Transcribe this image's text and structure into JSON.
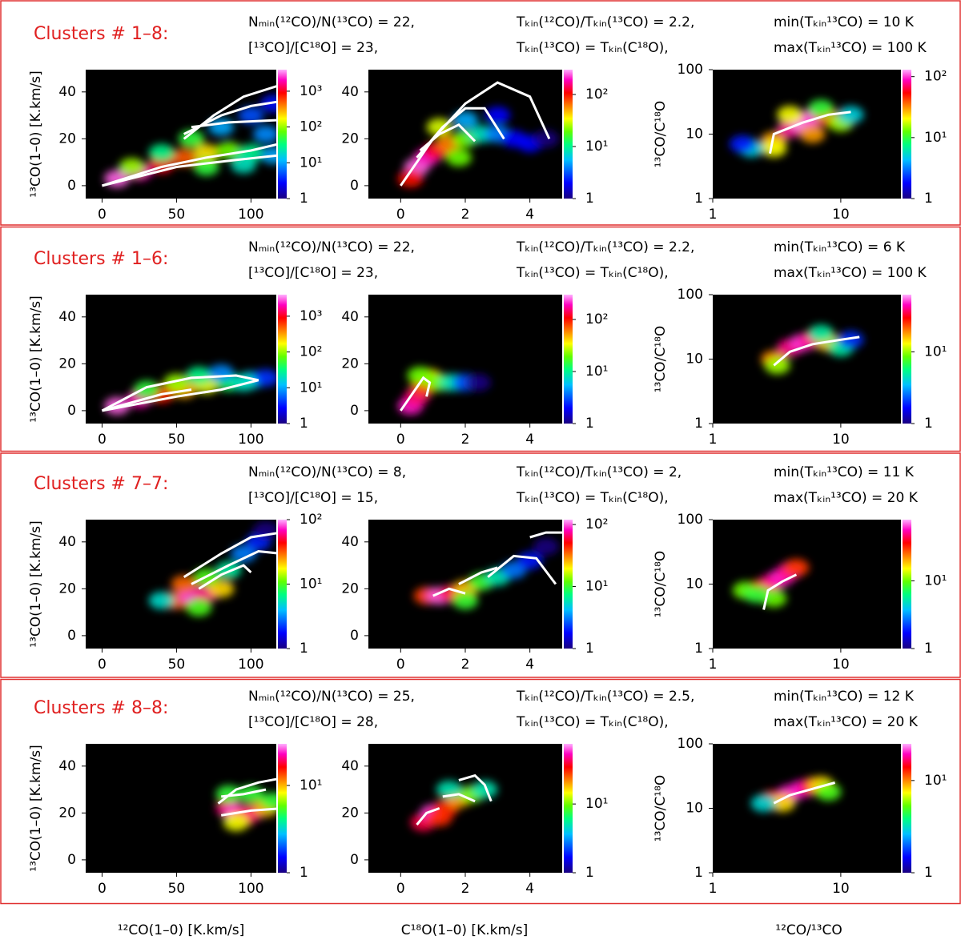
{
  "rows": [
    {
      "title": "Clusters # 1–8:",
      "params": [
        "Nₘᵢₙ(¹²CO)/N(¹³CO) = 22,",
        "Tₖᵢₙ(¹²CO)/Tₖᵢₙ(¹³CO) = 2.2,",
        "min(Tₖᵢₙ¹³CO) = 10 K",
        "[¹³CO]/[C¹⁸O] = 23,",
        "Tₖᵢₙ(¹³CO) = Tₖᵢₙ(C¹⁸O),",
        "max(Tₖᵢₙ¹³CO) = 100 K"
      ]
    },
    {
      "title": "Clusters # 1–6:",
      "params": [
        "Nₘᵢₙ(¹²CO)/N(¹³CO) = 22,",
        "Tₖᵢₙ(¹²CO)/Tₖᵢₙ(¹³CO) = 2.2,",
        "min(Tₖᵢₙ¹³CO) = 6 K",
        "[¹³CO]/[C¹⁸O] = 23,",
        "Tₖᵢₙ(¹³CO) = Tₖᵢₙ(C¹⁸O),",
        "max(Tₖᵢₙ¹³CO) = 100 K"
      ]
    },
    {
      "title": "Clusters # 7–7:",
      "params": [
        "Nₘᵢₙ(¹²CO)/N(¹³CO) = 8,",
        "Tₖᵢₙ(¹²CO)/Tₖᵢₙ(¹³CO) = 2,",
        "min(Tₖᵢₙ¹³CO) = 11 K",
        "[¹³CO]/[C¹⁸O] = 15,",
        "Tₖᵢₙ(¹³CO) = Tₖᵢₙ(C¹⁸O),",
        "max(Tₖᵢₙ¹³CO) = 20 K"
      ]
    },
    {
      "title": "Clusters # 8–8:",
      "params": [
        "Nₘᵢₙ(¹²CO)/N(¹³CO) = 25,",
        "Tₖᵢₙ(¹²CO)/Tₖᵢₙ(¹³CO) = 2.5,",
        "min(Tₖᵢₙ¹³CO) = 12 K",
        "[¹³CO]/[C¹⁸O] = 28,",
        "Tₖᵢₙ(¹³CO) = Tₖᵢₙ(C¹⁸O),",
        "max(Tₖᵢₙ¹³CO) = 20 K"
      ]
    }
  ],
  "chart_data": [
    {
      "type": "heatmap",
      "ylabel": "¹³CO(1–0) [K.km/s]",
      "xlim": [
        -11,
        117
      ],
      "ylim": [
        -5.5,
        49.5
      ],
      "xticks": [
        0,
        50,
        100
      ],
      "yticks": [
        0,
        20,
        40
      ],
      "xlog": false,
      "ylog": false,
      "clim": [
        1,
        4000
      ],
      "cticks": [
        1,
        {
          "value": 10,
          "label": "10¹"
        },
        {
          "value": 100,
          "label": "10²"
        },
        {
          "value": 1000,
          "label": "10³"
        }
      ],
      "curve_color": "#ffffff",
      "x": [
        10,
        25,
        40,
        55,
        70,
        85,
        100,
        115,
        60,
        80,
        100,
        115,
        40,
        20,
        70,
        95,
        110
      ],
      "y": [
        3,
        6,
        9,
        12,
        14,
        15,
        14,
        13,
        20,
        25,
        30,
        35,
        14,
        8,
        8,
        9,
        22
      ],
      "values": [
        3000,
        2000,
        1000,
        500,
        200,
        80,
        30,
        10,
        50,
        10,
        5,
        3,
        30,
        100,
        50,
        20,
        8
      ],
      "curves": [
        {
          "x": [
            55,
            75,
            95,
            120
          ],
          "y": [
            20,
            30,
            38,
            43
          ]
        },
        {
          "x": [
            55,
            80,
            100,
            120
          ],
          "y": [
            22,
            30,
            34,
            36
          ]
        },
        {
          "x": [
            60,
            85,
            120
          ],
          "y": [
            25,
            27,
            28
          ]
        },
        {
          "x": [
            0,
            40,
            70,
            100,
            120
          ],
          "y": [
            0,
            8,
            12,
            15,
            18
          ]
        },
        {
          "x": [
            0,
            50,
            90,
            120
          ],
          "y": [
            0,
            8,
            11,
            13
          ]
        }
      ]
    },
    {
      "type": "heatmap",
      "xlim": [
        -1,
        5
      ],
      "ylim": [
        -5.5,
        49.5
      ],
      "xticks": [
        0,
        2,
        4
      ],
      "yticks": [
        0,
        20,
        40
      ],
      "xlog": false,
      "ylog": false,
      "clim": [
        1,
        300
      ],
      "cticks": [
        1,
        {
          "value": 10,
          "label": "10¹"
        },
        {
          "value": 100,
          "label": "10²"
        }
      ],
      "curve_color": "#ffffff",
      "x": [
        0.5,
        0.8,
        1.1,
        1.5,
        2.0,
        2.5,
        3.0,
        3.5,
        4.0,
        4.5,
        1.2,
        2.0,
        0.3,
        3.0,
        1.8
      ],
      "y": [
        8,
        12,
        15,
        18,
        20,
        22,
        22,
        20,
        18,
        20,
        25,
        28,
        3,
        30,
        12
      ],
      "values": [
        250,
        200,
        120,
        60,
        20,
        8,
        4,
        2,
        2,
        1,
        30,
        5,
        100,
        2,
        20
      ],
      "curves": [
        {
          "x": [
            0,
            1,
            2,
            3,
            4,
            4.6
          ],
          "y": [
            0,
            20,
            35,
            44,
            38,
            20
          ]
        },
        {
          "x": [
            0.5,
            1.3,
            2,
            2.6,
            3.2
          ],
          "y": [
            12,
            25,
            33,
            33,
            20
          ]
        },
        {
          "x": [
            0.6,
            1.2,
            1.8,
            2.3
          ],
          "y": [
            15,
            22,
            26,
            19
          ]
        }
      ]
    },
    {
      "type": "heatmap",
      "ylabel": "¹³CO/C¹⁸O",
      "xlim": [
        1,
        29.5
      ],
      "ylim": [
        1,
        100
      ],
      "xticks": [
        1,
        10
      ],
      "yticks": [
        1,
        10,
        100
      ],
      "xlog": true,
      "ylog": true,
      "clim": [
        1,
        130
      ],
      "cticks": [
        1,
        {
          "value": 10,
          "label": "10¹"
        },
        {
          "value": 100,
          "label": "10²"
        }
      ],
      "curve_color": "#ffffff",
      "x": [
        3,
        4,
        5,
        6,
        8,
        10,
        3,
        2,
        1.7,
        12,
        6,
        4,
        7
      ],
      "y": [
        8,
        12,
        15,
        18,
        18,
        15,
        6,
        6,
        7,
        20,
        10,
        20,
        25
      ],
      "values": [
        30,
        80,
        120,
        100,
        40,
        15,
        20,
        5,
        2,
        5,
        30,
        20,
        10
      ],
      "curves": [
        {
          "x": [
            2.8,
            3,
            5,
            8,
            12
          ],
          "y": [
            5,
            10,
            15,
            20,
            22
          ]
        }
      ]
    },
    {
      "type": "heatmap",
      "ylabel": "¹³CO(1–0) [K.km/s]",
      "xlim": [
        -11,
        117
      ],
      "ylim": [
        -5.5,
        49.5
      ],
      "xticks": [
        0,
        50,
        100
      ],
      "yticks": [
        0,
        20,
        40
      ],
      "xlog": false,
      "ylog": false,
      "clim": [
        1,
        4000
      ],
      "cticks": [
        1,
        {
          "value": 10,
          "label": "10¹"
        },
        {
          "value": 100,
          "label": "10²"
        },
        {
          "value": 1000,
          "label": "10³"
        }
      ],
      "curve_color": "#ffffff",
      "x": [
        10,
        25,
        40,
        55,
        70,
        85,
        100,
        110,
        50,
        65,
        80,
        95,
        30
      ],
      "y": [
        2,
        5,
        7,
        9,
        11,
        12,
        13,
        14,
        12,
        15,
        16,
        12,
        9
      ],
      "values": [
        3000,
        2000,
        800,
        300,
        150,
        40,
        10,
        4,
        100,
        30,
        8,
        20,
        50
      ],
      "curves": [
        {
          "x": [
            0,
            30,
            60,
            90,
            105,
            80,
            50,
            0
          ],
          "y": [
            0,
            10,
            14,
            15,
            13,
            9,
            6,
            0
          ]
        },
        {
          "x": [
            0,
            40,
            60
          ],
          "y": [
            0,
            7,
            9
          ]
        }
      ]
    },
    {
      "type": "heatmap",
      "xlim": [
        -1,
        5
      ],
      "ylim": [
        -5.5,
        49.5
      ],
      "xticks": [
        0,
        2,
        4
      ],
      "yticks": [
        0,
        20,
        40
      ],
      "xlog": false,
      "ylog": false,
      "clim": [
        1,
        300
      ],
      "cticks": [
        1,
        {
          "value": 10,
          "label": "10¹"
        },
        {
          "value": 100,
          "label": "10²"
        }
      ],
      "curve_color": "#ffffff",
      "x": [
        0.3,
        0.5,
        0.7,
        0.9,
        0.6,
        1.2,
        1.6,
        2.0,
        2.4
      ],
      "y": [
        2,
        6,
        10,
        14,
        15,
        12,
        12,
        12,
        12
      ],
      "values": [
        200,
        150,
        80,
        40,
        20,
        20,
        8,
        3,
        1
      ],
      "curves": [
        {
          "x": [
            0,
            0.4,
            0.7,
            0.9,
            0.8
          ],
          "y": [
            0,
            8,
            14,
            12,
            6
          ]
        }
      ]
    },
    {
      "type": "heatmap",
      "ylabel": "¹³CO/C¹⁸O",
      "xlim": [
        1,
        29.5
      ],
      "ylim": [
        1,
        100
      ],
      "xticks": [
        1,
        10
      ],
      "yticks": [
        1,
        10,
        100
      ],
      "xlog": true,
      "ylog": true,
      "clim": [
        1,
        63
      ],
      "cticks": [
        1,
        {
          "value": 10,
          "label": "10¹"
        }
      ],
      "curve_color": "#ffffff",
      "x": [
        3,
        4,
        5,
        6,
        8,
        10,
        12,
        3.2,
        7
      ],
      "y": [
        10,
        15,
        18,
        20,
        18,
        15,
        20,
        8,
        25
      ],
      "values": [
        20,
        40,
        50,
        40,
        15,
        5,
        2,
        10,
        5
      ],
      "curves": [
        {
          "x": [
            3,
            4,
            6,
            10,
            14
          ],
          "y": [
            8,
            13,
            17,
            20,
            22
          ]
        }
      ]
    },
    {
      "type": "heatmap",
      "ylabel": "¹³CO(1–0) [K.km/s]",
      "xlim": [
        -11,
        117
      ],
      "ylim": [
        -5.5,
        49.5
      ],
      "xticks": [
        0,
        50,
        100
      ],
      "yticks": [
        0,
        20,
        40
      ],
      "xlog": false,
      "ylog": false,
      "clim": [
        1,
        100
      ],
      "cticks": [
        1,
        {
          "value": 10,
          "label": "10¹"
        },
        {
          "value": 100,
          "label": "10²"
        }
      ],
      "curve_color": "#ffffff",
      "x": [
        50,
        60,
        70,
        80,
        55,
        70,
        85,
        95,
        105,
        40,
        65,
        110
      ],
      "y": [
        15,
        17,
        18,
        20,
        22,
        25,
        28,
        35,
        40,
        15,
        12,
        45
      ],
      "values": [
        30,
        80,
        60,
        20,
        30,
        10,
        6,
        3,
        2,
        5,
        10,
        1
      ],
      "curves": [
        {
          "x": [
            55,
            80,
            100,
            120
          ],
          "y": [
            25,
            35,
            42,
            44
          ]
        },
        {
          "x": [
            60,
            85,
            105,
            120
          ],
          "y": [
            22,
            30,
            36,
            35
          ]
        },
        {
          "x": [
            65,
            80,
            95,
            100
          ],
          "y": [
            20,
            26,
            30,
            27
          ]
        }
      ]
    },
    {
      "type": "heatmap",
      "xlim": [
        -1,
        5
      ],
      "ylim": [
        -5.5,
        49.5
      ],
      "xticks": [
        0,
        2,
        4
      ],
      "yticks": [
        0,
        20,
        40
      ],
      "xlog": false,
      "ylog": false,
      "clim": [
        1,
        120
      ],
      "cticks": [
        1,
        {
          "value": 10,
          "label": "10¹"
        },
        {
          "value": 100,
          "label": "10²"
        }
      ],
      "curve_color": "#ffffff",
      "x": [
        0.8,
        1.2,
        1.6,
        2.0,
        2.5,
        3.0,
        3.5,
        4.0,
        4.5,
        2.0
      ],
      "y": [
        17,
        17,
        18,
        20,
        23,
        25,
        28,
        32,
        38,
        15
      ],
      "values": [
        40,
        100,
        60,
        25,
        10,
        6,
        3,
        2,
        1,
        10
      ],
      "curves": [
        {
          "x": [
            1,
            1.5,
            2
          ],
          "y": [
            17,
            20,
            18
          ]
        },
        {
          "x": [
            1.8,
            2.5,
            3
          ],
          "y": [
            22,
            27,
            29
          ]
        },
        {
          "x": [
            2.7,
            3.5,
            4.2,
            4.8
          ],
          "y": [
            25,
            34,
            33,
            22
          ]
        },
        {
          "x": [
            4,
            4.5,
            5
          ],
          "y": [
            42,
            44,
            44
          ]
        }
      ]
    },
    {
      "type": "heatmap",
      "ylabel": "¹³CO/C¹⁸O",
      "xlim": [
        1,
        29.5
      ],
      "ylim": [
        1,
        100
      ],
      "xticks": [
        1,
        10
      ],
      "yticks": [
        1,
        10,
        100
      ],
      "xlog": true,
      "ylog": true,
      "clim": [
        1,
        80
      ],
      "cticks": [
        1,
        {
          "value": 10,
          "label": "10¹"
        }
      ],
      "curve_color": "#ffffff",
      "x": [
        1.8,
        2.5,
        3,
        3.5,
        4,
        4.5,
        3,
        2.2
      ],
      "y": [
        8,
        9,
        11,
        13,
        16,
        18,
        6,
        7
      ],
      "values": [
        10,
        30,
        50,
        60,
        50,
        30,
        10,
        8
      ],
      "curves": [
        {
          "x": [
            2.5,
            2.7,
            3.5,
            4.5
          ],
          "y": [
            4,
            8,
            11,
            14
          ]
        }
      ]
    },
    {
      "type": "heatmap",
      "ylabel": "¹³CO(1–0) [K.km/s]",
      "xlabel": "¹²CO(1–0) [K.km/s]",
      "xlim": [
        -11,
        117
      ],
      "ylim": [
        -5.5,
        49.5
      ],
      "xticks": [
        0,
        50,
        100
      ],
      "yticks": [
        0,
        20,
        40
      ],
      "xlog": false,
      "ylog": false,
      "clim": [
        1,
        30
      ],
      "cticks": [
        1,
        {
          "value": 10,
          "label": "10¹"
        }
      ],
      "curve_color": "#ffffff",
      "x": [
        85,
        90,
        95,
        100,
        110,
        115,
        85,
        100,
        90
      ],
      "y": [
        22,
        20,
        18,
        20,
        22,
        25,
        28,
        28,
        16
      ],
      "values": [
        20,
        25,
        15,
        20,
        10,
        5,
        5,
        5,
        8
      ],
      "curves": [
        {
          "x": [
            78,
            90,
            105,
            122
          ],
          "y": [
            24,
            30,
            33,
            35
          ]
        },
        {
          "x": [
            80,
            100,
            122
          ],
          "y": [
            19,
            21,
            22
          ]
        },
        {
          "x": [
            80,
            95,
            110
          ],
          "y": [
            27,
            28,
            30
          ]
        }
      ]
    },
    {
      "type": "heatmap",
      "xlabel": "C¹⁸O(1–0) [K.km/s]",
      "xlim": [
        -1,
        5
      ],
      "ylim": [
        -5.5,
        49.5
      ],
      "xticks": [
        0,
        2,
        4
      ],
      "yticks": [
        0,
        20,
        40
      ],
      "xlog": false,
      "ylog": false,
      "clim": [
        1,
        75
      ],
      "cticks": [
        1,
        {
          "value": 10,
          "label": "10¹"
        }
      ],
      "curve_color": "#ffffff",
      "x": [
        0.7,
        1.0,
        1.4,
        1.8,
        2.2,
        2.6,
        1.5,
        1.2
      ],
      "y": [
        16,
        20,
        22,
        26,
        28,
        30,
        30,
        18
      ],
      "values": [
        40,
        60,
        30,
        20,
        10,
        5,
        5,
        30
      ],
      "curves": [
        {
          "x": [
            0.5,
            0.8,
            1.2
          ],
          "y": [
            15,
            20,
            22
          ]
        },
        {
          "x": [
            1.3,
            1.8,
            2.3
          ],
          "y": [
            27,
            28,
            25
          ]
        },
        {
          "x": [
            1.8,
            2.3,
            2.6,
            2.8
          ],
          "y": [
            34,
            36,
            32,
            25
          ]
        }
      ]
    },
    {
      "type": "heatmap",
      "ylabel": "¹³CO/C¹⁸O",
      "xlabel": "¹²CO/¹³CO",
      "xlim": [
        1,
        29.5
      ],
      "ylim": [
        1,
        100
      ],
      "xticks": [
        1,
        10
      ],
      "yticks": [
        1,
        10,
        100
      ],
      "xlog": true,
      "ylog": true,
      "clim": [
        1,
        25
      ],
      "cticks": [
        1,
        {
          "value": 10,
          "label": "10¹"
        }
      ],
      "curve_color": "#ffffff",
      "x": [
        3,
        4,
        5,
        6,
        7,
        3.5,
        8,
        2.5
      ],
      "y": [
        14,
        17,
        20,
        22,
        23,
        12,
        18,
        12
      ],
      "values": [
        15,
        20,
        20,
        15,
        8,
        8,
        5,
        3
      ],
      "curves": [
        {
          "x": [
            3,
            4,
            6,
            9
          ],
          "y": [
            12,
            16,
            20,
            25
          ]
        }
      ]
    }
  ]
}
